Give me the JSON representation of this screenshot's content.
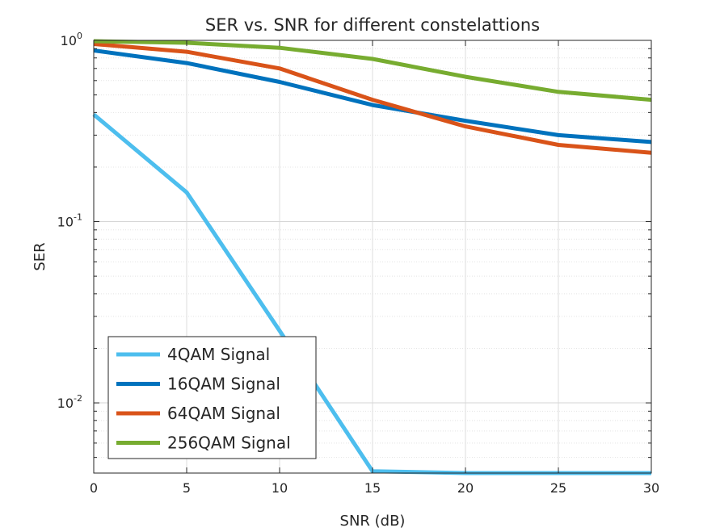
{
  "chart_data": {
    "type": "line",
    "title": "SER vs. SNR for different constelattions",
    "xlabel": "SNR (dB)",
    "ylabel": "SER",
    "xlim": [
      0,
      30
    ],
    "ylim": [
      0.0041,
      1
    ],
    "yscale": "log",
    "grid": true,
    "minor_grid": true,
    "legend_position": "bottom-left",
    "x_ticks": [
      "0",
      "5",
      "10",
      "15",
      "20",
      "25",
      "30"
    ],
    "y_ticks": [
      {
        "base": "10",
        "exp": "0"
      },
      {
        "base": "10",
        "exp": "-1"
      },
      {
        "base": "10",
        "exp": "-2"
      }
    ],
    "x": [
      0,
      5,
      10,
      15,
      20,
      25,
      30
    ],
    "series": [
      {
        "name": "4QAM Signal",
        "color": "#4dbeee",
        "values": [
          0.39,
          0.145,
          0.025,
          0.0042,
          0.0041,
          0.0041,
          0.0041
        ]
      },
      {
        "name": "16QAM Signal",
        "color": "#0072bd",
        "values": [
          0.88,
          0.75,
          0.59,
          0.44,
          0.36,
          0.3,
          0.275
        ]
      },
      {
        "name": "64QAM Signal",
        "color": "#d95319",
        "values": [
          0.955,
          0.865,
          0.7,
          0.47,
          0.335,
          0.265,
          0.24
        ]
      },
      {
        "name": "256QAM Signal",
        "color": "#77ac30",
        "values": [
          0.99,
          0.97,
          0.91,
          0.79,
          0.63,
          0.52,
          0.47
        ]
      }
    ]
  }
}
